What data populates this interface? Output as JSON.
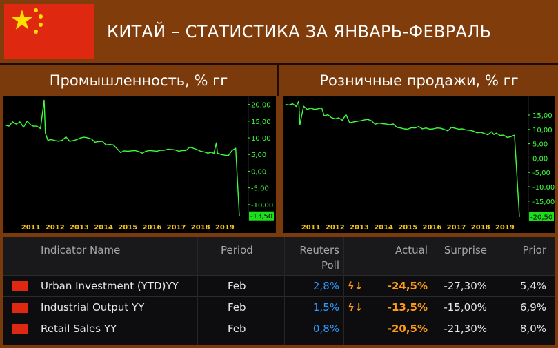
{
  "header": {
    "title": "КИТАЙ – СТАТИСТИКА ЗА ЯНВАРЬ-ФЕВРАЛЬ",
    "flag_colors": {
      "red": "#de2910",
      "yellow": "#ffde00"
    }
  },
  "chart_data": [
    {
      "type": "line",
      "title": "Промышленность, % гг",
      "x_tick_labels": [
        "2011",
        "2012",
        "2013",
        "2014",
        "2015",
        "2016",
        "2017",
        "2018",
        "2019"
      ],
      "y_tick_labels": [
        "20,00",
        "15,00",
        "10,00",
        "5,00",
        "0,00",
        "-5,00",
        "-10,00"
      ],
      "ylim": [
        -15,
        22
      ],
      "xlim": [
        2010.4,
        2020.3
      ],
      "last_value_label": "-13,50",
      "line_color": "#3cff3c",
      "series": [
        {
          "x": [
            2010.45,
            2010.6,
            2010.75,
            2010.9,
            2011.05,
            2011.2,
            2011.35,
            2011.5,
            2011.6,
            2011.75,
            2011.9,
            2012.05,
            2012.1,
            2012.2,
            2012.35,
            2012.5,
            2012.65,
            2012.8,
            2012.95,
            2013.1,
            2013.25,
            2013.4,
            2013.55,
            2013.7,
            2013.85,
            2014.0,
            2014.15,
            2014.3,
            2014.45,
            2014.6,
            2014.75,
            2014.9,
            2015.05,
            2015.2,
            2015.35,
            2015.5,
            2015.65,
            2015.8,
            2015.95,
            2016.1,
            2016.25,
            2016.4,
            2016.55,
            2016.7,
            2016.85,
            2017.0,
            2017.15,
            2017.3,
            2017.45,
            2017.6,
            2017.75,
            2017.9,
            2018.05,
            2018.2,
            2018.35,
            2018.5,
            2018.65,
            2018.8,
            2018.95,
            2019.05,
            2019.15,
            2019.2,
            2019.35,
            2019.5,
            2019.65,
            2019.8,
            2019.95,
            2020.1
          ],
          "y": [
            13.8,
            13.5,
            14.8,
            14.1,
            14.8,
            13.2,
            15.0,
            13.9,
            13.5,
            13.5,
            12.8,
            21.3,
            11.4,
            9.3,
            9.5,
            9.2,
            9.0,
            9.3,
            10.3,
            9.0,
            9.2,
            9.5,
            10.0,
            10.2,
            10.0,
            9.7,
            8.7,
            8.9,
            9.0,
            7.9,
            8.0,
            7.9,
            6.8,
            5.6,
            6.1,
            6.0,
            6.1,
            6.2,
            5.9,
            5.4,
            6.0,
            6.2,
            6.1,
            6.0,
            6.3,
            6.3,
            6.6,
            6.5,
            6.4,
            6.0,
            6.2,
            6.2,
            7.2,
            6.9,
            6.5,
            6.0,
            5.8,
            5.4,
            5.7,
            5.3,
            8.5,
            5.4,
            5.0,
            4.8,
            4.7,
            6.2,
            6.9,
            -13.5
          ]
        }
      ]
    },
    {
      "type": "line",
      "title": "Розничные продажи, % гг",
      "x_tick_labels": [
        "2011",
        "2012",
        "2013",
        "2014",
        "2015",
        "2016",
        "2017",
        "2018",
        "2019"
      ],
      "y_tick_labels": [
        "15,00",
        "10,00",
        "5,00",
        "0,00",
        "-5,00",
        "-10,00",
        "-15,00"
      ],
      "ylim": [
        -22,
        21
      ],
      "xlim": [
        2010.4,
        2020.3
      ],
      "last_value_label": "-20,50",
      "line_color": "#3cff3c",
      "series": [
        {
          "x": [
            2010.45,
            2010.6,
            2010.75,
            2010.9,
            2011.0,
            2011.05,
            2011.2,
            2011.35,
            2011.5,
            2011.65,
            2011.8,
            2011.95,
            2012.05,
            2012.2,
            2012.35,
            2012.5,
            2012.65,
            2012.8,
            2012.95,
            2013.1,
            2013.25,
            2013.4,
            2013.55,
            2013.7,
            2013.85,
            2014.0,
            2014.15,
            2014.3,
            2014.45,
            2014.6,
            2014.75,
            2014.9,
            2015.05,
            2015.2,
            2015.35,
            2015.5,
            2015.65,
            2015.8,
            2015.95,
            2016.1,
            2016.25,
            2016.4,
            2016.55,
            2016.7,
            2016.85,
            2017.0,
            2017.15,
            2017.3,
            2017.45,
            2017.6,
            2017.75,
            2017.9,
            2018.05,
            2018.2,
            2018.35,
            2018.5,
            2018.65,
            2018.8,
            2018.95,
            2019.05,
            2019.15,
            2019.3,
            2019.45,
            2019.6,
            2019.75,
            2019.9,
            2020.1
          ],
          "y": [
            18.7,
            18.5,
            18.9,
            18.0,
            19.9,
            11.6,
            18.1,
            17.0,
            17.4,
            17.0,
            17.2,
            17.5,
            14.7,
            15.1,
            14.1,
            13.7,
            14.0,
            13.2,
            15.2,
            12.3,
            12.6,
            12.8,
            13.0,
            13.3,
            13.5,
            13.0,
            11.8,
            12.2,
            12.0,
            11.9,
            11.6,
            11.9,
            10.7,
            10.5,
            10.2,
            10.1,
            10.6,
            10.5,
            11.0,
            10.2,
            10.5,
            10.1,
            10.2,
            10.5,
            10.4,
            10.0,
            9.5,
            10.7,
            10.4,
            10.1,
            10.2,
            9.8,
            9.7,
            9.4,
            8.8,
            9.0,
            8.6,
            8.1,
            9.2,
            8.2,
            8.7,
            7.9,
            8.0,
            7.2,
            7.5,
            8.0,
            -20.5
          ]
        }
      ]
    }
  ],
  "table": {
    "headers": {
      "indicator": "Indicator Name",
      "period": "Period",
      "poll_line1": "Reuters",
      "poll_line2": "Poll",
      "actual": "Actual",
      "surprise": "Surprise",
      "prior": "Prior"
    },
    "rows": [
      {
        "indicator": "Urban Investment (YTD)YY",
        "period": "Feb",
        "poll": "2,8%",
        "actual": "-24,5%",
        "surprise": "-27,30%",
        "prior": "5,4%"
      },
      {
        "indicator": "Industrial Output YY",
        "period": "Feb",
        "poll": "1,5%",
        "actual": "-13,5%",
        "surprise": "-15,00%",
        "prior": "6,9%"
      },
      {
        "indicator": "Retail Sales YY",
        "period": "Feb",
        "poll": "0,8%",
        "actual": "-20,5%",
        "surprise": "-21,30%",
        "prior": "8,0%"
      }
    ]
  },
  "icons": {
    "flash": "lightning-bolt-icon",
    "down": "arrow-down-icon"
  }
}
